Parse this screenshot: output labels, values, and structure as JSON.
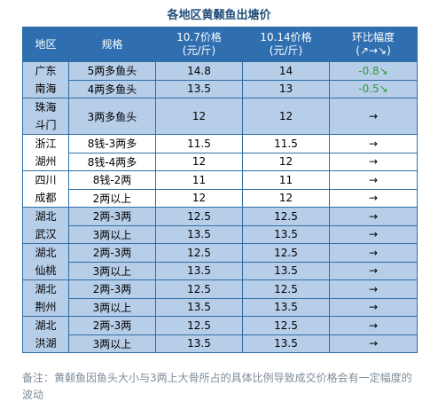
{
  "title": "各地区黄颡鱼出塘价",
  "headers": [
    "地区",
    "规格",
    "10.7价格\n(元/斤)",
    "10.14价格\n(元/斤)",
    "环比幅度\n(↗→↘)"
  ],
  "groups": [
    {
      "region": "广东\n南海",
      "shade": "blue",
      "rows": [
        {
          "spec": "5两多鱼头",
          "p1": "14.8",
          "p2": "14",
          "change": "-0.8↘",
          "change_color": "#2e9c3a"
        },
        {
          "spec": "4两多鱼头",
          "p1": "13.5",
          "p2": "13",
          "change": "-0.5↘",
          "change_color": "#2e9c3a"
        }
      ]
    },
    {
      "region": "珠海\n斗门",
      "shade": "blue",
      "rows": [
        {
          "spec": "3两多鱼头",
          "p1": "12",
          "p2": "12",
          "change": "→",
          "change_color": ""
        }
      ]
    },
    {
      "region": "浙江\n湖州",
      "shade": "white",
      "rows": [
        {
          "spec": "8钱-3两多",
          "p1": "11.5",
          "p2": "11.5",
          "change": "→",
          "change_color": ""
        },
        {
          "spec": "8钱-4两多",
          "p1": "12",
          "p2": "12",
          "change": "→",
          "change_color": ""
        }
      ]
    },
    {
      "region": "四川\n成都",
      "shade": "white",
      "rows": [
        {
          "spec": "8钱-2两",
          "p1": "11",
          "p2": "11",
          "change": "→",
          "change_color": ""
        },
        {
          "spec": "2两以上",
          "p1": "12",
          "p2": "12",
          "change": "→",
          "change_color": ""
        }
      ]
    },
    {
      "region": "湖北\n武汉",
      "shade": "blue",
      "rows": [
        {
          "spec": "2两-3两",
          "p1": "12.5",
          "p2": "12.5",
          "change": "→",
          "change_color": ""
        },
        {
          "spec": "3两以上",
          "p1": "13.5",
          "p2": "13.5",
          "change": "→",
          "change_color": ""
        }
      ]
    },
    {
      "region": "湖北\n仙桃",
      "shade": "blue",
      "rows": [
        {
          "spec": "2两-3两",
          "p1": "12.5",
          "p2": "12.5",
          "change": "→",
          "change_color": ""
        },
        {
          "spec": "3两以上",
          "p1": "13.5",
          "p2": "13.5",
          "change": "→",
          "change_color": ""
        }
      ]
    },
    {
      "region": "湖北\n荆州",
      "shade": "blue",
      "rows": [
        {
          "spec": "2两-3两",
          "p1": "12.5",
          "p2": "12.5",
          "change": "→",
          "change_color": ""
        },
        {
          "spec": "3两以上",
          "p1": "13.5",
          "p2": "13.5",
          "change": "→",
          "change_color": ""
        }
      ]
    },
    {
      "region": "湖北\n洪湖",
      "shade": "blue",
      "rows": [
        {
          "spec": "2两-3两",
          "p1": "12.5",
          "p2": "12.5",
          "change": "→",
          "change_color": ""
        },
        {
          "spec": "3两以上",
          "p1": "13.5",
          "p2": "13.5",
          "change": "→",
          "change_color": ""
        }
      ]
    }
  ],
  "note": "备注：黄颡鱼因鱼头大小与3两上大骨所占的具体比例导致成交价格会有一定幅度的波动"
}
